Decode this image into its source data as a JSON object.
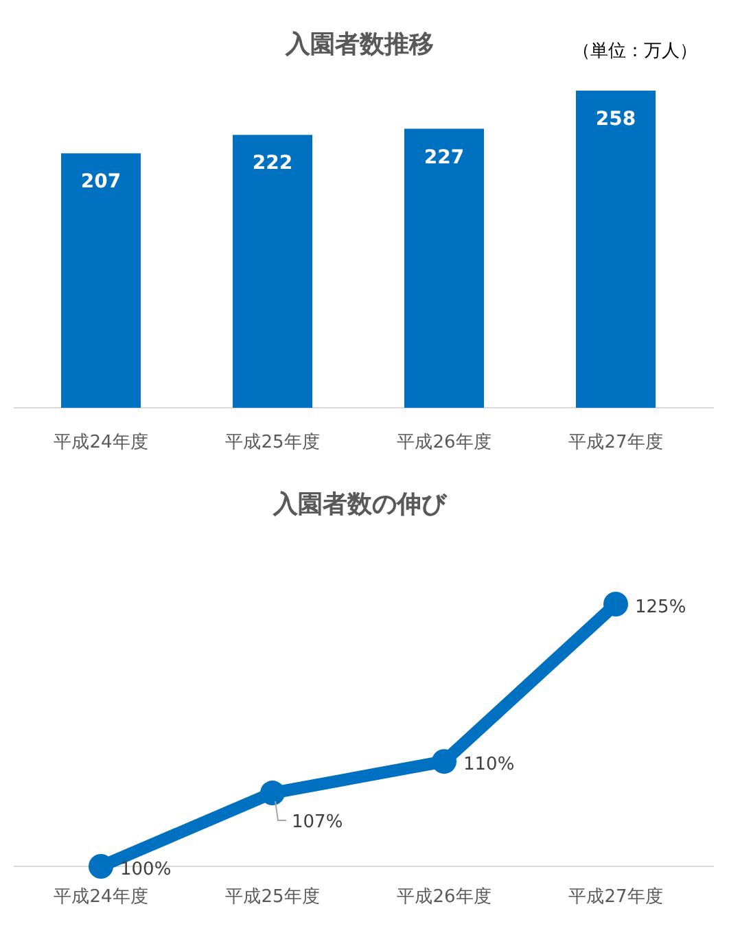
{
  "chart_data": [
    {
      "type": "bar",
      "title": "入園者数推移",
      "annotations": [
        "（単位：万人）"
      ],
      "categories": [
        "平成24年度",
        "平成25年度",
        "平成26年度",
        "平成27年度"
      ],
      "values": [
        207,
        222,
        227,
        258
      ],
      "color": "#0070c0",
      "data_labels": true
    },
    {
      "type": "line",
      "title": "入園者数の伸び",
      "categories": [
        "平成24年度",
        "平成25年度",
        "平成26年度",
        "平成27年度"
      ],
      "values": [
        100,
        107,
        110,
        125
      ],
      "value_labels": [
        "100%",
        "107%",
        "110%",
        "125%"
      ],
      "color": "#0070c0",
      "marker": "circle"
    }
  ]
}
